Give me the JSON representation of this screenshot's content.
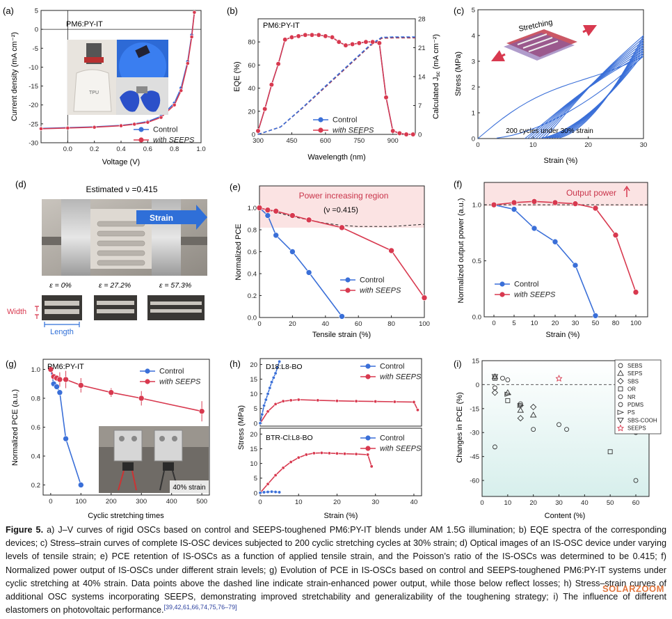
{
  "colors": {
    "control": "#3a6fd8",
    "seeps": "#d8394f",
    "dashed": "#a3344b",
    "shade": "#fbe3e3"
  },
  "panels": {
    "a": {
      "label": "(a)",
      "inset_title": "PM6:PY-IT",
      "photo_text": "TPU"
    },
    "b": {
      "label": "(b)",
      "inset_title": "PM6:PY-IT"
    },
    "c": {
      "label": "(c)",
      "stretching_text": "Stretching",
      "note": "200 cycles under 30% strain"
    },
    "d": {
      "label": "(d)",
      "title": "Estimated ν =0.415",
      "strain_arrow": "Strain",
      "eps_labels": [
        "ε = 0%",
        "ε = 27.2%",
        "ε = 57.3%"
      ],
      "width_label": "Width",
      "length_label": "Length"
    },
    "e": {
      "label": "(e)",
      "region_text": "Power increasing region",
      "nu_text": "(ν =0.415)"
    },
    "f": {
      "label": "(f)",
      "region_text": "Output power"
    },
    "g": {
      "label": "(g)",
      "inset_title": "PM6:PY-IT",
      "photo_text": "40% strain"
    },
    "h": {
      "label": "(h)",
      "top_title": "D18:L8-BO",
      "bottom_title": "BTR-Cl:L8-BO"
    },
    "i": {
      "label": "(i)"
    }
  },
  "legend": {
    "control": "Control",
    "seeps": "with SEEPS"
  },
  "chart_data": [
    {
      "id": "a",
      "type": "line",
      "title": "",
      "xlabel": "Voltage (V)",
      "ylabel": "Current density (mA cm⁻²)",
      "xlim": [
        -0.2,
        1.0
      ],
      "ylim": [
        -30,
        5
      ],
      "xticks": [
        "0.0",
        "0.2",
        "0.4",
        "0.6",
        "0.8",
        "1.0"
      ],
      "yticks": [
        "-30",
        "-25",
        "-20",
        "-15",
        "-10",
        "-5",
        "0",
        "5"
      ],
      "series": [
        {
          "name": "Control",
          "x": [
            -0.2,
            0,
            0.2,
            0.4,
            0.5,
            0.6,
            0.7,
            0.8,
            0.85,
            0.9,
            0.93,
            0.95
          ],
          "y": [
            -26.2,
            -26.0,
            -25.8,
            -25.4,
            -25.0,
            -24.4,
            -23.0,
            -19.5,
            -15.5,
            -8.5,
            -1.5,
            4.5
          ]
        },
        {
          "name": "with SEEPS",
          "x": [
            -0.2,
            0,
            0.2,
            0.4,
            0.5,
            0.6,
            0.7,
            0.8,
            0.85,
            0.9,
            0.93,
            0.95
          ],
          "y": [
            -26.3,
            -26.1,
            -25.9,
            -25.5,
            -25.1,
            -24.6,
            -23.3,
            -20.0,
            -16.2,
            -9.0,
            -2.0,
            4.5
          ]
        }
      ]
    },
    {
      "id": "b",
      "type": "line",
      "title": "",
      "xlabel": "Wavelength (nm)",
      "ylabel": "EQE (%)",
      "ylabel_right": "Calculated J_sc (mA cm⁻²)",
      "xlim": [
        300,
        1000
      ],
      "ylim": [
        0,
        100
      ],
      "y2lim": [
        0,
        28
      ],
      "xticks": [
        "300",
        "450",
        "600",
        "750",
        "900"
      ],
      "yticks": [
        "0",
        "20",
        "40",
        "60",
        "80"
      ],
      "y2ticks": [
        "0",
        "7",
        "14",
        "21",
        "28"
      ],
      "series": [
        {
          "name": "Control",
          "x": [
            300,
            330,
            360,
            390,
            420,
            450,
            480,
            510,
            540,
            570,
            600,
            630,
            660,
            690,
            720,
            750,
            780,
            810,
            840,
            870,
            900,
            930,
            960,
            990
          ],
          "y": [
            3,
            22,
            43,
            61,
            82,
            84,
            85,
            86,
            86,
            86,
            85,
            84,
            80,
            77,
            78,
            79,
            80,
            80,
            79,
            32,
            3,
            1,
            0,
            0
          ]
        },
        {
          "name": "with SEEPS",
          "x": [
            300,
            330,
            360,
            390,
            420,
            450,
            480,
            510,
            540,
            570,
            600,
            630,
            660,
            690,
            720,
            750,
            780,
            810,
            840,
            870,
            900,
            930,
            960,
            990
          ],
          "y": [
            3,
            22,
            43,
            61,
            82,
            84,
            85,
            86,
            86,
            86,
            85,
            84,
            80,
            77,
            78,
            79,
            80,
            80,
            79,
            32,
            3,
            1,
            0,
            0
          ]
        },
        {
          "name": "Jsc Control",
          "x": [
            300,
            400,
            500,
            600,
            700,
            800,
            850,
            900,
            1000
          ],
          "y": [
            0,
            1.8,
            6.5,
            11.5,
            16.5,
            21.5,
            23.3,
            23.4,
            23.4
          ]
        },
        {
          "name": "Jsc with SEEPS",
          "x": [
            300,
            400,
            500,
            600,
            700,
            800,
            850,
            900,
            1000
          ],
          "y": [
            0,
            1.8,
            6.6,
            11.7,
            16.7,
            21.7,
            23.5,
            23.6,
            23.6
          ]
        }
      ]
    },
    {
      "id": "c",
      "type": "line",
      "title": "",
      "xlabel": "Strain (%)",
      "ylabel": "Stress (MPa)",
      "xlim": [
        0,
        30
      ],
      "ylim": [
        0,
        5
      ],
      "xticks": [
        "0",
        "10",
        "20",
        "30"
      ],
      "yticks": [
        "0",
        "1",
        "2",
        "3",
        "4",
        "5"
      ]
    },
    {
      "id": "e",
      "type": "line",
      "title": "",
      "xlabel": "Tensile strain (%)",
      "ylabel": "Normalized PCE",
      "xlim": [
        0,
        100
      ],
      "ylim": [
        0,
        1.2
      ],
      "xticks": [
        "0",
        "20",
        "40",
        "60",
        "80",
        "100"
      ],
      "yticks": [
        "0.0",
        "0.2",
        "0.4",
        "0.6",
        "0.8",
        "1.0"
      ],
      "series": [
        {
          "name": "Control",
          "x": [
            0,
            5,
            10,
            20,
            30,
            50
          ],
          "y": [
            1.0,
            0.93,
            0.75,
            0.6,
            0.41,
            0.01
          ]
        },
        {
          "name": "with SEEPS",
          "x": [
            0,
            5,
            10,
            20,
            30,
            50,
            80,
            100
          ],
          "y": [
            1.0,
            0.98,
            0.97,
            0.93,
            0.89,
            0.82,
            0.61,
            0.18
          ]
        }
      ]
    },
    {
      "id": "f",
      "type": "line",
      "title": "",
      "xlabel": "Strain (%)",
      "ylabel": "Normalized output  power (a.u.)",
      "xticks": [
        "0",
        "5",
        "10",
        "20",
        "30",
        "50",
        "80",
        "100"
      ],
      "yticks": [
        "0.0",
        "0.5",
        "1.0"
      ],
      "ylim": [
        0,
        1.2
      ],
      "series": [
        {
          "name": "Control",
          "x": [
            "0",
            "5",
            "10",
            "20",
            "30",
            "50"
          ],
          "y": [
            1.0,
            0.96,
            0.79,
            0.67,
            0.46,
            0.01
          ]
        },
        {
          "name": "with SEEPS",
          "x": [
            "0",
            "5",
            "10",
            "20",
            "30",
            "50",
            "80",
            "100"
          ],
          "y": [
            1.0,
            1.02,
            1.03,
            1.02,
            1.01,
            0.97,
            0.73,
            0.22
          ]
        }
      ]
    },
    {
      "id": "g",
      "type": "line",
      "title": "",
      "xlabel": "Cyclic stretching times",
      "ylabel": "Normalized PCE (a.u.)",
      "xlim": [
        0,
        500
      ],
      "ylim": [
        0.2,
        1.0
      ],
      "xticks": [
        "0",
        "100",
        "200",
        "300",
        "400",
        "500"
      ],
      "yticks": [
        "0.2",
        "0.4",
        "0.6",
        "0.8",
        "1.0"
      ],
      "series": [
        {
          "name": "Control",
          "x": [
            0,
            10,
            20,
            30,
            50,
            100
          ],
          "y": [
            1.0,
            0.9,
            0.88,
            0.84,
            0.52,
            0.2
          ]
        },
        {
          "name": "with SEEPS",
          "x": [
            0,
            10,
            20,
            30,
            50,
            100,
            200,
            300,
            500
          ],
          "y": [
            1.0,
            0.95,
            0.94,
            0.93,
            0.93,
            0.89,
            0.84,
            0.8,
            0.71
          ]
        }
      ]
    },
    {
      "id": "h",
      "type": "line",
      "title": "",
      "xlabel": "Strain (%)",
      "ylabel": "Stress (MPa)",
      "xlim": [
        0,
        40
      ],
      "xticks": [
        "0",
        "10",
        "20",
        "30",
        "40"
      ],
      "yticks_top": [
        "0",
        "5",
        "10",
        "15",
        "20"
      ],
      "yticks_bottom": [
        "0",
        "5",
        "10",
        "15",
        "20"
      ],
      "series": [
        {
          "name": "Control D18:L8-BO",
          "x": [
            0,
            0.5,
            1,
            1.5,
            2,
            2.5,
            3,
            3.5,
            4,
            4.5,
            5
          ],
          "y": [
            0,
            3,
            6,
            8,
            10,
            12,
            14,
            15.5,
            17,
            19,
            21
          ]
        },
        {
          "name": "with SEEPS D18:L8-BO",
          "x": [
            0,
            2,
            4,
            6,
            8,
            10,
            15,
            20,
            25,
            30,
            35,
            40,
            41
          ],
          "y": [
            0,
            4,
            6.5,
            7.5,
            7.8,
            8,
            7.8,
            7.6,
            7.5,
            7.4,
            7.3,
            7.2,
            4.5
          ]
        },
        {
          "name": "Control BTR-Cl:L8-BO",
          "x": [
            0,
            1,
            2,
            3,
            4,
            5
          ],
          "y": [
            0,
            0.2,
            0.3,
            0.4,
            0.3,
            0.2
          ]
        },
        {
          "name": "with SEEPS BTR-Cl:L8-BO",
          "x": [
            0,
            2,
            4,
            6,
            8,
            10,
            12,
            14,
            16,
            18,
            20,
            22,
            25,
            28,
            29
          ],
          "y": [
            0,
            3,
            6,
            8.5,
            10.5,
            12,
            13,
            13.5,
            13.6,
            13.5,
            13.4,
            13.3,
            13.2,
            13.0,
            9
          ]
        }
      ]
    },
    {
      "id": "i",
      "type": "scatter",
      "title": "",
      "xlabel": "Content (%)",
      "ylabel": "Changes in PCE (%)",
      "xlim": [
        0,
        60
      ],
      "ylim": [
        -70,
        15
      ],
      "xticks": [
        "0",
        "10",
        "20",
        "30",
        "40",
        "50",
        "60"
      ],
      "yticks": [
        "15",
        "0",
        "-15",
        "-30",
        "-45",
        "-60"
      ],
      "legend": [
        "SEBS",
        "SEPS",
        "SBS",
        "OR",
        "NR",
        "PDMS",
        "PS",
        "SBS-COOH",
        "SEEPS"
      ],
      "series": [
        {
          "name": "SEBS",
          "x": [
            5,
            10,
            15,
            30,
            60
          ],
          "y": [
            -2,
            3,
            -13,
            -25,
            -30
          ]
        },
        {
          "name": "SEPS",
          "x": [
            5,
            10,
            15,
            20
          ],
          "y": [
            5,
            -5,
            -16,
            -19
          ]
        },
        {
          "name": "SBS",
          "x": [
            5,
            15,
            20
          ],
          "y": [
            -5,
            -21,
            -14
          ]
        },
        {
          "name": "OR",
          "x": [
            5,
            10,
            50
          ],
          "y": [
            4,
            -10,
            -42
          ]
        },
        {
          "name": "NR",
          "x": [
            5,
            8,
            20,
            33,
            60
          ],
          "y": [
            -39,
            4,
            -28,
            -28,
            -60
          ]
        },
        {
          "name": "PDMS",
          "x": [
            15
          ],
          "y": [
            -12
          ]
        },
        {
          "name": "PS",
          "x": [
            10,
            15
          ],
          "y": [
            -6,
            -13
          ]
        },
        {
          "name": "SBS-COOH",
          "x": [
            5
          ],
          "y": [
            5
          ]
        },
        {
          "name": "SEEPS",
          "x": [
            30
          ],
          "y": [
            4
          ]
        }
      ]
    }
  ],
  "caption": {
    "figure_label": "Figure 5.",
    "text": "a) J–V curves of rigid OSCs based on control and SEEPS-toughened PM6:PY-IT blends under AM 1.5G illumination; b) EQE spectra of the corresponding devices; c) Stress–strain curves of complete IS-OSC devices subjected to 200 cyclic stretching cycles at 30% strain; d) Optical images of an IS-OSC device under varying levels of tensile strain; e) PCE retention of IS-OSCs as a function of applied tensile strain, and the Poisson’s ratio of the IS-OSCs was determined to be 0.415; f) Normalized power output of IS-OSCs under different strain levels; g) Evolution of PCE in IS-OSCs based on control and SEEPS-toughened PM6:PY-IT systems under cyclic stretching at 40% strain. Data points above the dashed line indicate strain-enhanced power output, while those below reflect losses; h) Stress–strain curves of additional OSC systems incorporating SEEPS, demonstrating improved stretchability and generalizability of the toughening strategy; i) The influence of different elastomers on photovoltaic performance.",
    "refs": "[39,42,61,66,74,75,76–79]"
  },
  "watermark": "SOLARZOOM"
}
